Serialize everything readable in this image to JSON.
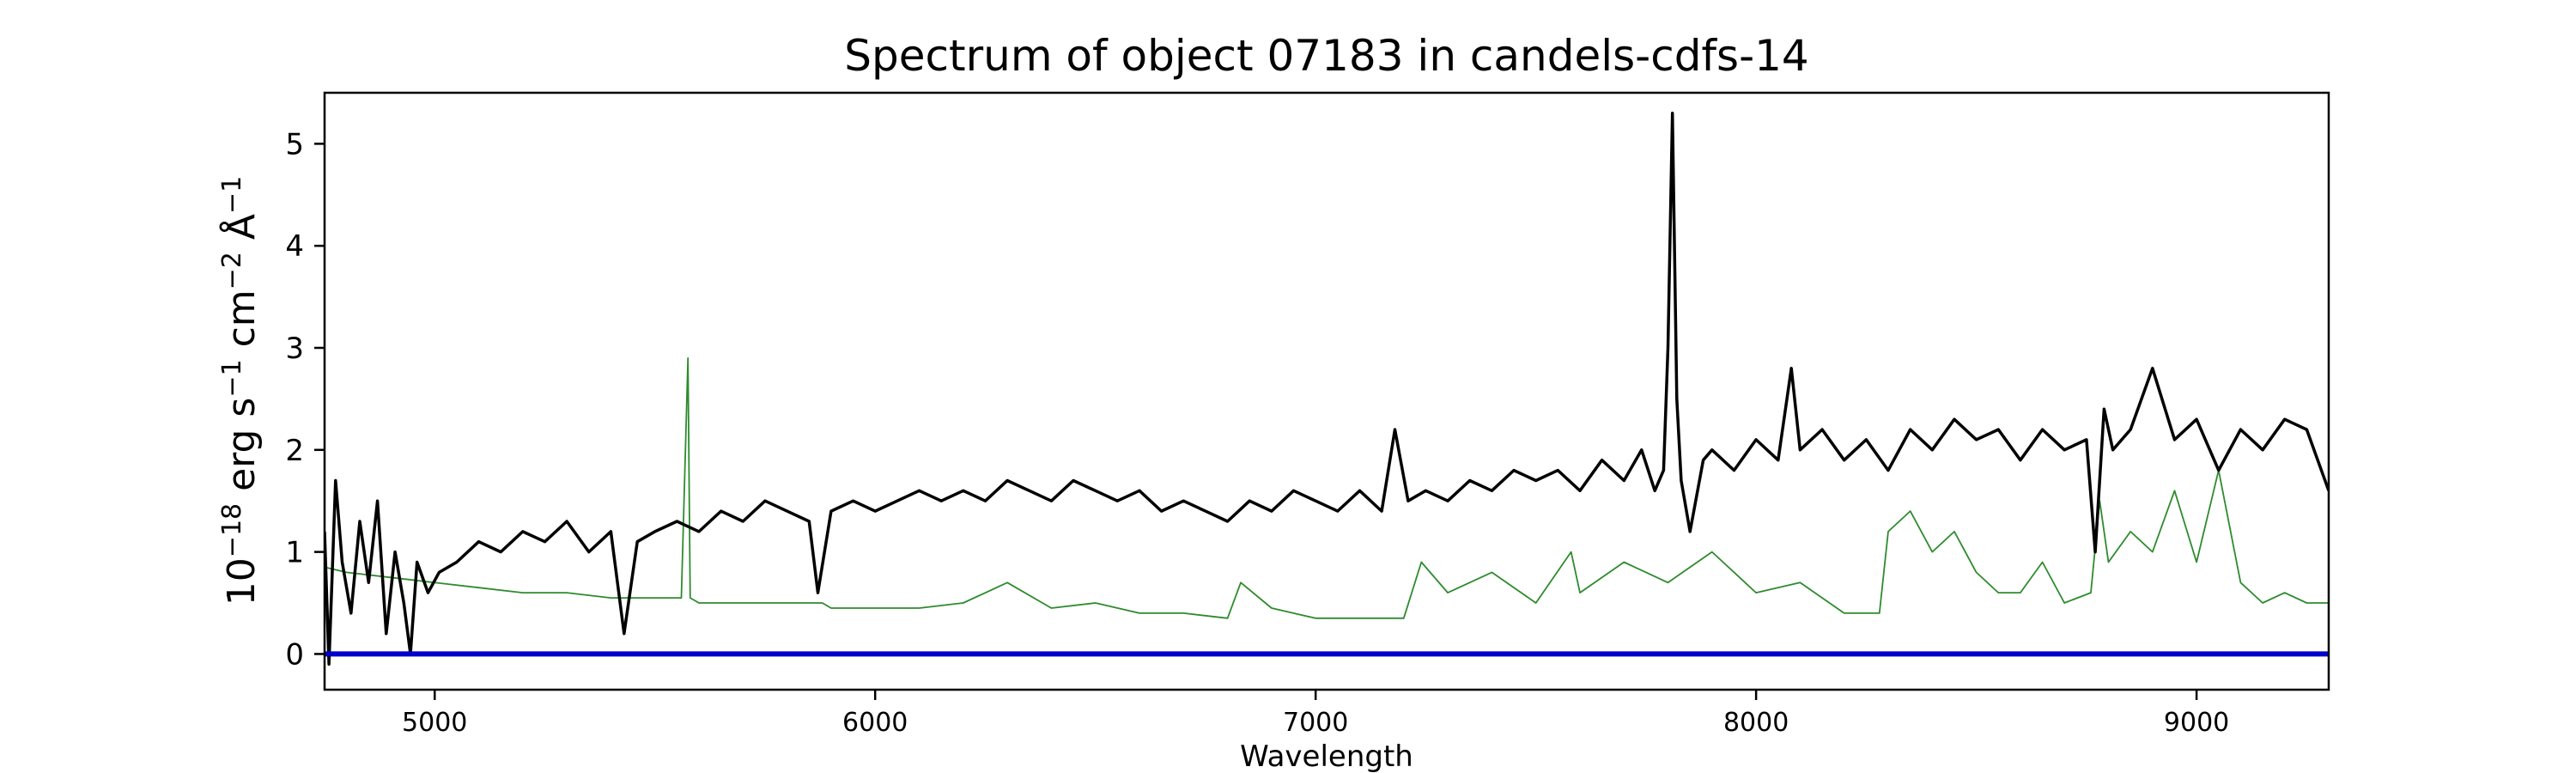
{
  "chart_data": {
    "type": "line",
    "title": "Spectrum of object 07183 in candels-cdfs-14",
    "xlabel": "Wavelength",
    "ylabel": {
      "base": "10",
      "base_exp": "−18",
      "erg": " erg s",
      "s_exp": "−1",
      "cm": " cm",
      "cm_exp": "−2",
      "ang": " Å",
      "ang_exp": "−1"
    },
    "xlim": [
      4750,
      9300
    ],
    "ylim": [
      -0.35,
      5.5
    ],
    "xticks": [
      5000,
      6000,
      7000,
      8000,
      9000
    ],
    "yticks": [
      0,
      1,
      2,
      3,
      4,
      5
    ],
    "grid": false,
    "legend": "none",
    "colors": {
      "flux": "#000000",
      "noise": "#2e8b2e",
      "zero": "#0000cc",
      "frame": "#000000"
    },
    "series": [
      {
        "role": "flux",
        "x": [
          4750,
          4760,
          4775,
          4790,
          4810,
          4830,
          4850,
          4870,
          4890,
          4910,
          4930,
          4945,
          4960,
          4985,
          5010,
          5050,
          5100,
          5150,
          5200,
          5250,
          5300,
          5350,
          5400,
          5430,
          5460,
          5500,
          5550,
          5600,
          5650,
          5700,
          5750,
          5800,
          5850,
          5870,
          5900,
          5950,
          6000,
          6050,
          6100,
          6150,
          6200,
          6250,
          6300,
          6350,
          6400,
          6450,
          6500,
          6550,
          6600,
          6650,
          6700,
          6750,
          6800,
          6850,
          6900,
          6950,
          7000,
          7050,
          7100,
          7150,
          7180,
          7210,
          7250,
          7300,
          7350,
          7400,
          7450,
          7500,
          7550,
          7600,
          7650,
          7700,
          7740,
          7770,
          7790,
          7800,
          7810,
          7820,
          7830,
          7850,
          7880,
          7900,
          7950,
          8000,
          8050,
          8080,
          8100,
          8150,
          8200,
          8250,
          8300,
          8350,
          8400,
          8450,
          8500,
          8550,
          8600,
          8650,
          8700,
          8750,
          8770,
          8790,
          8810,
          8850,
          8900,
          8950,
          9000,
          9050,
          9100,
          9150,
          9200,
          9250,
          9300
        ],
        "y": [
          1.2,
          -0.1,
          1.7,
          0.9,
          0.4,
          1.3,
          0.7,
          1.5,
          0.2,
          1.0,
          0.5,
          0.0,
          0.9,
          0.6,
          0.8,
          0.9,
          1.1,
          1.0,
          1.2,
          1.1,
          1.3,
          1.0,
          1.2,
          0.2,
          1.1,
          1.2,
          1.3,
          1.2,
          1.4,
          1.3,
          1.5,
          1.4,
          1.3,
          0.6,
          1.4,
          1.5,
          1.4,
          1.5,
          1.6,
          1.5,
          1.6,
          1.5,
          1.7,
          1.6,
          1.5,
          1.7,
          1.6,
          1.5,
          1.6,
          1.4,
          1.5,
          1.4,
          1.3,
          1.5,
          1.4,
          1.6,
          1.5,
          1.4,
          1.6,
          1.4,
          2.2,
          1.5,
          1.6,
          1.5,
          1.7,
          1.6,
          1.8,
          1.7,
          1.8,
          1.6,
          1.9,
          1.7,
          2.0,
          1.6,
          1.8,
          3.0,
          5.3,
          2.5,
          1.7,
          1.2,
          1.9,
          2.0,
          1.8,
          2.1,
          1.9,
          2.8,
          2.0,
          2.2,
          1.9,
          2.1,
          1.8,
          2.2,
          2.0,
          2.3,
          2.1,
          2.2,
          1.9,
          2.2,
          2.0,
          2.1,
          1.0,
          2.4,
          2.0,
          2.2,
          2.8,
          2.1,
          2.3,
          1.8,
          2.2,
          2.0,
          2.3,
          2.2,
          1.6
        ]
      },
      {
        "role": "noise",
        "x": [
          4750,
          4800,
          4900,
          5000,
          5100,
          5200,
          5300,
          5400,
          5500,
          5560,
          5575,
          5580,
          5600,
          5700,
          5800,
          5880,
          5900,
          6000,
          6100,
          6200,
          6300,
          6400,
          6500,
          6600,
          6700,
          6800,
          6830,
          6900,
          7000,
          7100,
          7200,
          7240,
          7300,
          7400,
          7500,
          7580,
          7600,
          7700,
          7800,
          7900,
          8000,
          8100,
          8200,
          8280,
          8300,
          8350,
          8400,
          8450,
          8500,
          8550,
          8600,
          8650,
          8700,
          8760,
          8780,
          8800,
          8850,
          8900,
          8950,
          9000,
          9050,
          9100,
          9150,
          9200,
          9250,
          9300
        ],
        "y": [
          0.85,
          0.8,
          0.75,
          0.7,
          0.65,
          0.6,
          0.6,
          0.55,
          0.55,
          0.55,
          2.9,
          0.55,
          0.5,
          0.5,
          0.5,
          0.5,
          0.45,
          0.45,
          0.45,
          0.5,
          0.7,
          0.45,
          0.5,
          0.4,
          0.4,
          0.35,
          0.7,
          0.45,
          0.35,
          0.35,
          0.35,
          0.9,
          0.6,
          0.8,
          0.5,
          1.0,
          0.6,
          0.9,
          0.7,
          1.0,
          0.6,
          0.7,
          0.4,
          0.4,
          1.2,
          1.4,
          1.0,
          1.2,
          0.8,
          0.6,
          0.6,
          0.9,
          0.5,
          0.6,
          1.5,
          0.9,
          1.2,
          1.0,
          1.6,
          0.9,
          1.8,
          0.7,
          0.5,
          0.6,
          0.5,
          0.5
        ]
      },
      {
        "role": "zero",
        "x": [
          4750,
          9300
        ],
        "y": [
          0,
          0
        ]
      }
    ]
  }
}
